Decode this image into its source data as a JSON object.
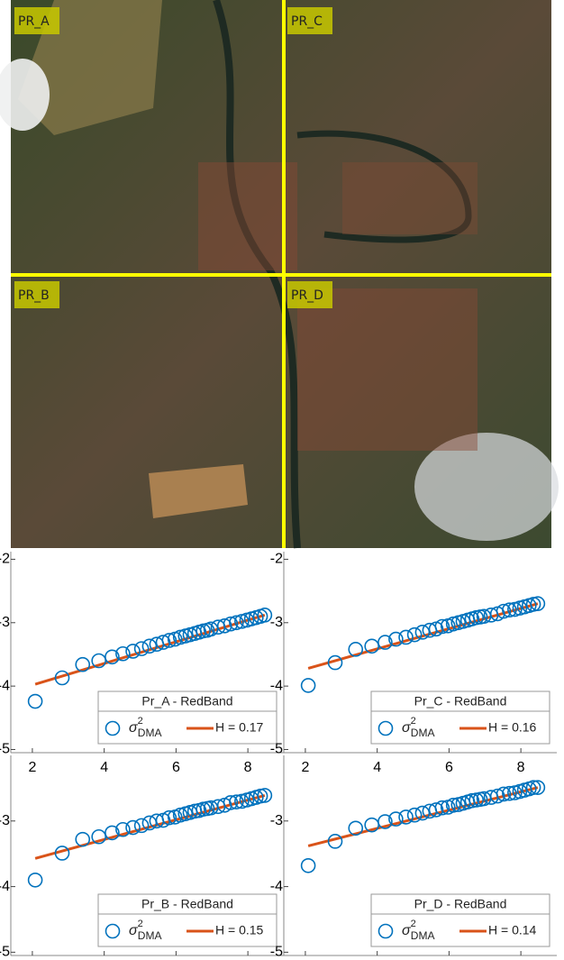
{
  "image": {
    "labels": [
      "PR_A",
      "PR_C",
      "PR_B",
      "PR_D"
    ]
  },
  "chart_data": [
    {
      "type": "scatter",
      "legend_title": "Pr_A - RedBand",
      "xlim": [
        1.4,
        9
      ],
      "ylim": [
        -5.05,
        -1.88
      ],
      "xticks": [
        2,
        4,
        6,
        8
      ],
      "yticks": [
        -2,
        -3,
        -4,
        -5
      ],
      "xtick_labels": true,
      "series": [
        {
          "name": "σ",
          "name_sup": "2",
          "name_sub": "DMA",
          "color": "#0072bd",
          "x": [
            2.08,
            2.83,
            3.4,
            3.85,
            4.22,
            4.52,
            4.8,
            5.04,
            5.26,
            5.46,
            5.64,
            5.81,
            5.97,
            6.12,
            6.26,
            6.39,
            6.52,
            6.64,
            6.76,
            6.87,
            6.97,
            7.17,
            7.35,
            7.52,
            7.68,
            7.83,
            7.97,
            8.1,
            8.23,
            8.35,
            8.47
          ],
          "values": [
            -4.24,
            -3.87,
            -3.66,
            -3.6,
            -3.54,
            -3.49,
            -3.45,
            -3.41,
            -3.37,
            -3.34,
            -3.31,
            -3.28,
            -3.26,
            -3.23,
            -3.21,
            -3.19,
            -3.17,
            -3.15,
            -3.13,
            -3.12,
            -3.1,
            -3.07,
            -3.05,
            -3.02,
            -3.0,
            -2.98,
            -2.96,
            -2.94,
            -2.92,
            -2.9,
            -2.88
          ]
        },
        {
          "name": "H = 0.17",
          "color": "#d95319",
          "x": [
            2.08,
            8.47
          ],
          "values": [
            -3.97,
            -2.88
          ]
        }
      ]
    },
    {
      "type": "scatter",
      "legend_title": "Pr_C - RedBand",
      "xlim": [
        1.4,
        9
      ],
      "ylim": [
        -5.05,
        -1.88
      ],
      "xticks": [
        2,
        4,
        6,
        8
      ],
      "yticks": [
        -2,
        -3,
        -4,
        -5
      ],
      "xtick_labels": true,
      "series": [
        {
          "name": "σ",
          "name_sup": "2",
          "name_sub": "DMA",
          "color": "#0072bd",
          "x": [
            2.08,
            2.83,
            3.4,
            3.85,
            4.22,
            4.52,
            4.8,
            5.04,
            5.26,
            5.46,
            5.64,
            5.81,
            5.97,
            6.12,
            6.26,
            6.39,
            6.52,
            6.64,
            6.76,
            6.87,
            6.97,
            7.17,
            7.35,
            7.52,
            7.68,
            7.83,
            7.97,
            8.1,
            8.23,
            8.35,
            8.47
          ],
          "values": [
            -3.99,
            -3.63,
            -3.42,
            -3.37,
            -3.31,
            -3.26,
            -3.23,
            -3.19,
            -3.15,
            -3.12,
            -3.1,
            -3.06,
            -3.05,
            -3.02,
            -3.0,
            -2.98,
            -2.96,
            -2.94,
            -2.92,
            -2.91,
            -2.9,
            -2.88,
            -2.86,
            -2.82,
            -2.8,
            -2.79,
            -2.77,
            -2.75,
            -2.73,
            -2.71,
            -2.7
          ]
        },
        {
          "name": "H = 0.16",
          "color": "#d95319",
          "x": [
            2.08,
            8.47
          ],
          "values": [
            -3.72,
            -2.7
          ]
        }
      ]
    },
    {
      "type": "scatter",
      "legend_title": "Pr_B - RedBand",
      "xlim": [
        1.4,
        9
      ],
      "ylim": [
        -5.05,
        -2.0
      ],
      "xticks": [
        2,
        4,
        6,
        8
      ],
      "yticks": [
        -3,
        -4,
        -5
      ],
      "xtick_labels": false,
      "series": [
        {
          "name": "σ",
          "name_sup": "2",
          "name_sub": "DMA",
          "color": "#0072bd",
          "x": [
            2.08,
            2.83,
            3.4,
            3.85,
            4.22,
            4.52,
            4.8,
            5.04,
            5.26,
            5.46,
            5.64,
            5.81,
            5.97,
            6.12,
            6.26,
            6.39,
            6.52,
            6.64,
            6.76,
            6.87,
            6.97,
            7.17,
            7.35,
            7.52,
            7.68,
            7.83,
            7.97,
            8.1,
            8.23,
            8.35,
            8.47
          ],
          "values": [
            -3.9,
            -3.49,
            -3.28,
            -3.24,
            -3.18,
            -3.13,
            -3.1,
            -3.07,
            -3.03,
            -3.0,
            -2.99,
            -2.95,
            -2.94,
            -2.91,
            -2.89,
            -2.87,
            -2.85,
            -2.84,
            -2.82,
            -2.81,
            -2.8,
            -2.78,
            -2.76,
            -2.72,
            -2.71,
            -2.7,
            -2.68,
            -2.66,
            -2.64,
            -2.62,
            -2.61
          ]
        },
        {
          "name": "H = 0.15",
          "color": "#d95319",
          "x": [
            2.08,
            8.47
          ],
          "values": [
            -3.57,
            -2.61
          ]
        }
      ]
    },
    {
      "type": "scatter",
      "legend_title": "Pr_D - RedBand",
      "xlim": [
        1.4,
        9
      ],
      "ylim": [
        -5.05,
        -2.0
      ],
      "xticks": [
        2,
        4,
        6,
        8
      ],
      "yticks": [
        -3,
        -4,
        -5
      ],
      "xtick_labels": false,
      "series": [
        {
          "name": "σ",
          "name_sup": "2",
          "name_sub": "DMA",
          "color": "#0072bd",
          "x": [
            2.08,
            2.83,
            3.4,
            3.85,
            4.22,
            4.52,
            4.8,
            5.04,
            5.26,
            5.46,
            5.64,
            5.81,
            5.97,
            6.12,
            6.26,
            6.39,
            6.52,
            6.64,
            6.76,
            6.87,
            6.97,
            7.17,
            7.35,
            7.52,
            7.68,
            7.83,
            7.97,
            8.1,
            8.23,
            8.35,
            8.47
          ],
          "values": [
            -3.68,
            -3.31,
            -3.11,
            -3.06,
            -3.01,
            -2.97,
            -2.94,
            -2.91,
            -2.88,
            -2.85,
            -2.83,
            -2.8,
            -2.79,
            -2.76,
            -2.75,
            -2.73,
            -2.71,
            -2.69,
            -2.68,
            -2.67,
            -2.66,
            -2.64,
            -2.62,
            -2.59,
            -2.58,
            -2.57,
            -2.55,
            -2.53,
            -2.51,
            -2.49,
            -2.49
          ]
        },
        {
          "name": "H = 0.14",
          "color": "#d95319",
          "x": [
            2.08,
            8.47
          ],
          "values": [
            -3.38,
            -2.49
          ]
        }
      ]
    }
  ]
}
